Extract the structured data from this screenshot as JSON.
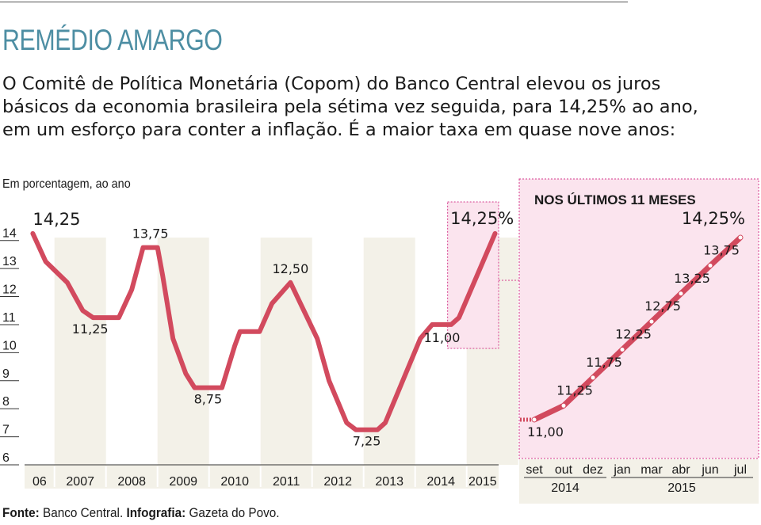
{
  "header": {
    "title": "REMÉDIO AMARGO",
    "description": "O Comitê de Política Monetária (Copom) do Banco Central elevou os juros básicos da economia brasileira pela sétima vez seguida, para 14,25% ao ano, em um esforço para conter a inflação. É a maior taxa em quase nove anos:",
    "unit": "Em porcentagem, ao ano"
  },
  "footer": {
    "source_label": "Fonte:",
    "source_value": " Banco Central. ",
    "credit_label": "Infografia:",
    "credit_value": " Gazeta do Povo."
  },
  "colors": {
    "line": "#d24a5e",
    "year_band": "#f3f1e8",
    "highlight_fill": "#fbe4ee",
    "highlight_border": "#d43a8c",
    "title": "#4d8ea3"
  },
  "chart_data": [
    {
      "type": "line",
      "title": "",
      "xlabel": "",
      "ylabel": "Em porcentagem, ao ano",
      "ylim": [
        6,
        14.5
      ],
      "yticks": [
        6,
        7,
        8,
        9,
        10,
        11,
        12,
        13,
        14
      ],
      "year_labels": [
        "06",
        "2007",
        "2008",
        "2009",
        "2010",
        "2011",
        "2012",
        "2013",
        "2014",
        "2015"
      ],
      "series": [
        {
          "points": [
            {
              "t": 2006.58,
              "v": 14.25
            },
            {
              "t": 2006.83,
              "v": 13.25
            },
            {
              "t": 2007.25,
              "v": 12.5
            },
            {
              "t": 2007.55,
              "v": 11.5
            },
            {
              "t": 2007.75,
              "v": 11.25
            },
            {
              "t": 2008.25,
              "v": 11.25
            },
            {
              "t": 2008.5,
              "v": 12.25
            },
            {
              "t": 2008.72,
              "v": 13.75
            },
            {
              "t": 2009.0,
              "v": 13.75
            },
            {
              "t": 2009.1,
              "v": 12.75
            },
            {
              "t": 2009.3,
              "v": 10.5
            },
            {
              "t": 2009.55,
              "v": 9.25
            },
            {
              "t": 2009.72,
              "v": 8.75
            },
            {
              "t": 2010.25,
              "v": 8.75
            },
            {
              "t": 2010.5,
              "v": 10.25
            },
            {
              "t": 2010.6,
              "v": 10.75
            },
            {
              "t": 2010.98,
              "v": 10.75
            },
            {
              "t": 2011.22,
              "v": 11.75
            },
            {
              "t": 2011.58,
              "v": 12.5
            },
            {
              "t": 2012.1,
              "v": 10.5
            },
            {
              "t": 2012.33,
              "v": 9.0
            },
            {
              "t": 2012.67,
              "v": 7.5
            },
            {
              "t": 2012.85,
              "v": 7.25
            },
            {
              "t": 2013.27,
              "v": 7.25
            },
            {
              "t": 2013.42,
              "v": 7.5
            },
            {
              "t": 2014.1,
              "v": 10.5
            },
            {
              "t": 2014.33,
              "v": 11.0
            },
            {
              "t": 2014.7,
              "v": 11.0
            },
            {
              "t": 2014.85,
              "v": 11.25
            },
            {
              "t": 2015.55,
              "v": 14.25
            }
          ]
        }
      ],
      "annotations": [
        {
          "text": "14,25",
          "t": 2006.58,
          "v": 14.25
        },
        {
          "text": "13,75",
          "t": 2008.86,
          "v": 13.75
        },
        {
          "text": "11,25",
          "t": 2008.0,
          "v": 11.25
        },
        {
          "text": "8,75",
          "t": 2009.98,
          "v": 8.75
        },
        {
          "text": "12,50",
          "t": 2011.58,
          "v": 12.5
        },
        {
          "text": "7,25",
          "t": 2013.06,
          "v": 7.25
        },
        {
          "text": "11,00",
          "t": 2014.52,
          "v": 11.0
        },
        {
          "text": "14,25%",
          "t": 2015.3,
          "v": 14.25
        }
      ]
    },
    {
      "type": "line",
      "title": "NOS ÚLTIMOS 11 MESES",
      "months": [
        "set",
        "out",
        "dez",
        "jan",
        "mar",
        "abr",
        "jun",
        "jul"
      ],
      "year_labels": [
        "2014",
        "2015"
      ],
      "values": [
        11.0,
        11.25,
        11.75,
        12.25,
        12.75,
        13.25,
        13.75,
        14.25
      ],
      "value_labels": [
        "11,00",
        "11,25",
        "11,75",
        "12,25",
        "12,75",
        "13,25",
        "13,75",
        "14,25%"
      ]
    }
  ]
}
